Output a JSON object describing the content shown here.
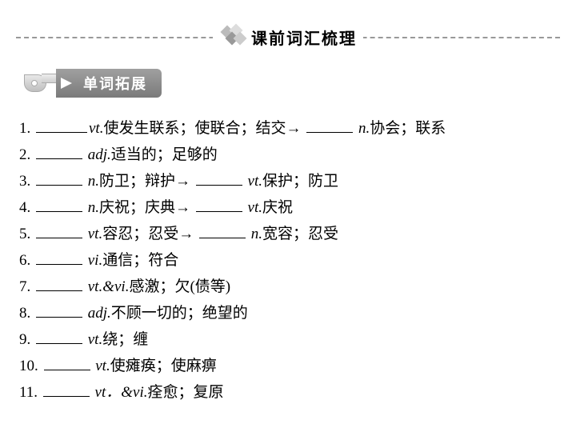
{
  "header": {
    "title": "课前词汇梳理"
  },
  "section": {
    "label": "单词拓展"
  },
  "lines": {
    "l1_a": "1. ",
    "l1_b": "使发生联系；使联合；结交→ ",
    "l1_c": "协会；联系",
    "l2_a": "2. ",
    "l2_b": "适当的；足够的",
    "l3_a": "3. ",
    "l3_b": "防卫；辩护→ ",
    "l3_c": "保护；防卫",
    "l4_a": "4. ",
    "l4_b": "庆祝；庆典→ ",
    "l4_c": "庆祝",
    "l5_a": "5. ",
    "l5_b": "容忍；忍受→ ",
    "l5_c": "宽容；忍受",
    "l6_a": "6. ",
    "l6_b": "通信；符合",
    "l7_a": "7. ",
    "l7_b": "感激；欠(债等)",
    "l8_a": "8. ",
    "l8_b": "不顾一切的；绝望的",
    "l9_a": "9. ",
    "l9_b": "绕；缠",
    "l10_a": "10. ",
    "l10_b": "使瘫痪；使麻痹",
    "l11_a": "11. ",
    "l11_b": "痊愈；复原"
  },
  "pos": {
    "vt": "vt.",
    "vi": "vi.",
    "n": "n.",
    "adj": "adj.",
    "vtvi": "vt.&vi.",
    "vt_vi": "vt．&vi."
  }
}
